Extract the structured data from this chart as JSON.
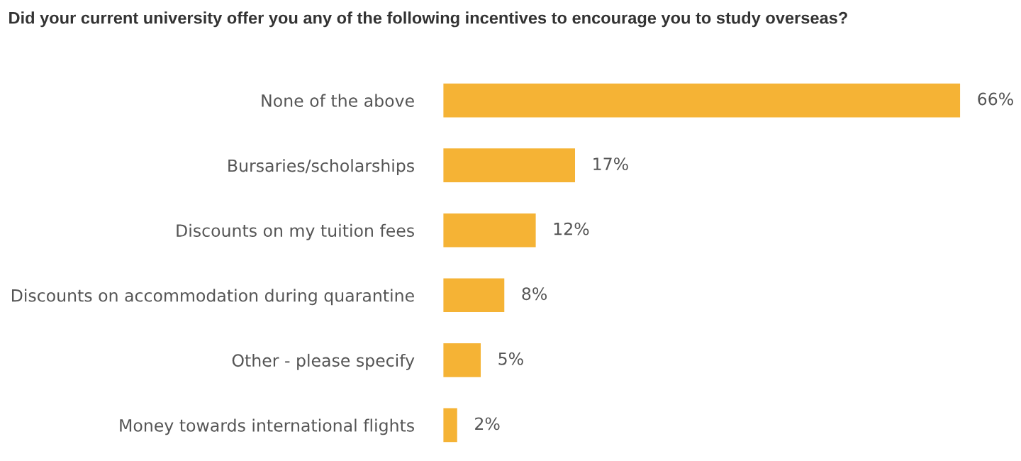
{
  "chart_data": {
    "type": "bar",
    "orientation": "horizontal",
    "title": "Did your current university offer you any of the following incentives to encourage you to study overseas?",
    "categories": [
      "None of the above",
      "Bursaries/scholarships",
      "Discounts on my tuition fees",
      "Discounts on accommodation during quarantine",
      "Other - please specify",
      "Money towards international flights"
    ],
    "values": [
      66,
      17,
      12,
      8,
      5,
      2
    ],
    "value_labels": [
      "66%",
      "17%",
      "12%",
      "8%",
      "5%",
      "2%"
    ],
    "color": "#f5b335",
    "grid": false,
    "legend": false
  }
}
